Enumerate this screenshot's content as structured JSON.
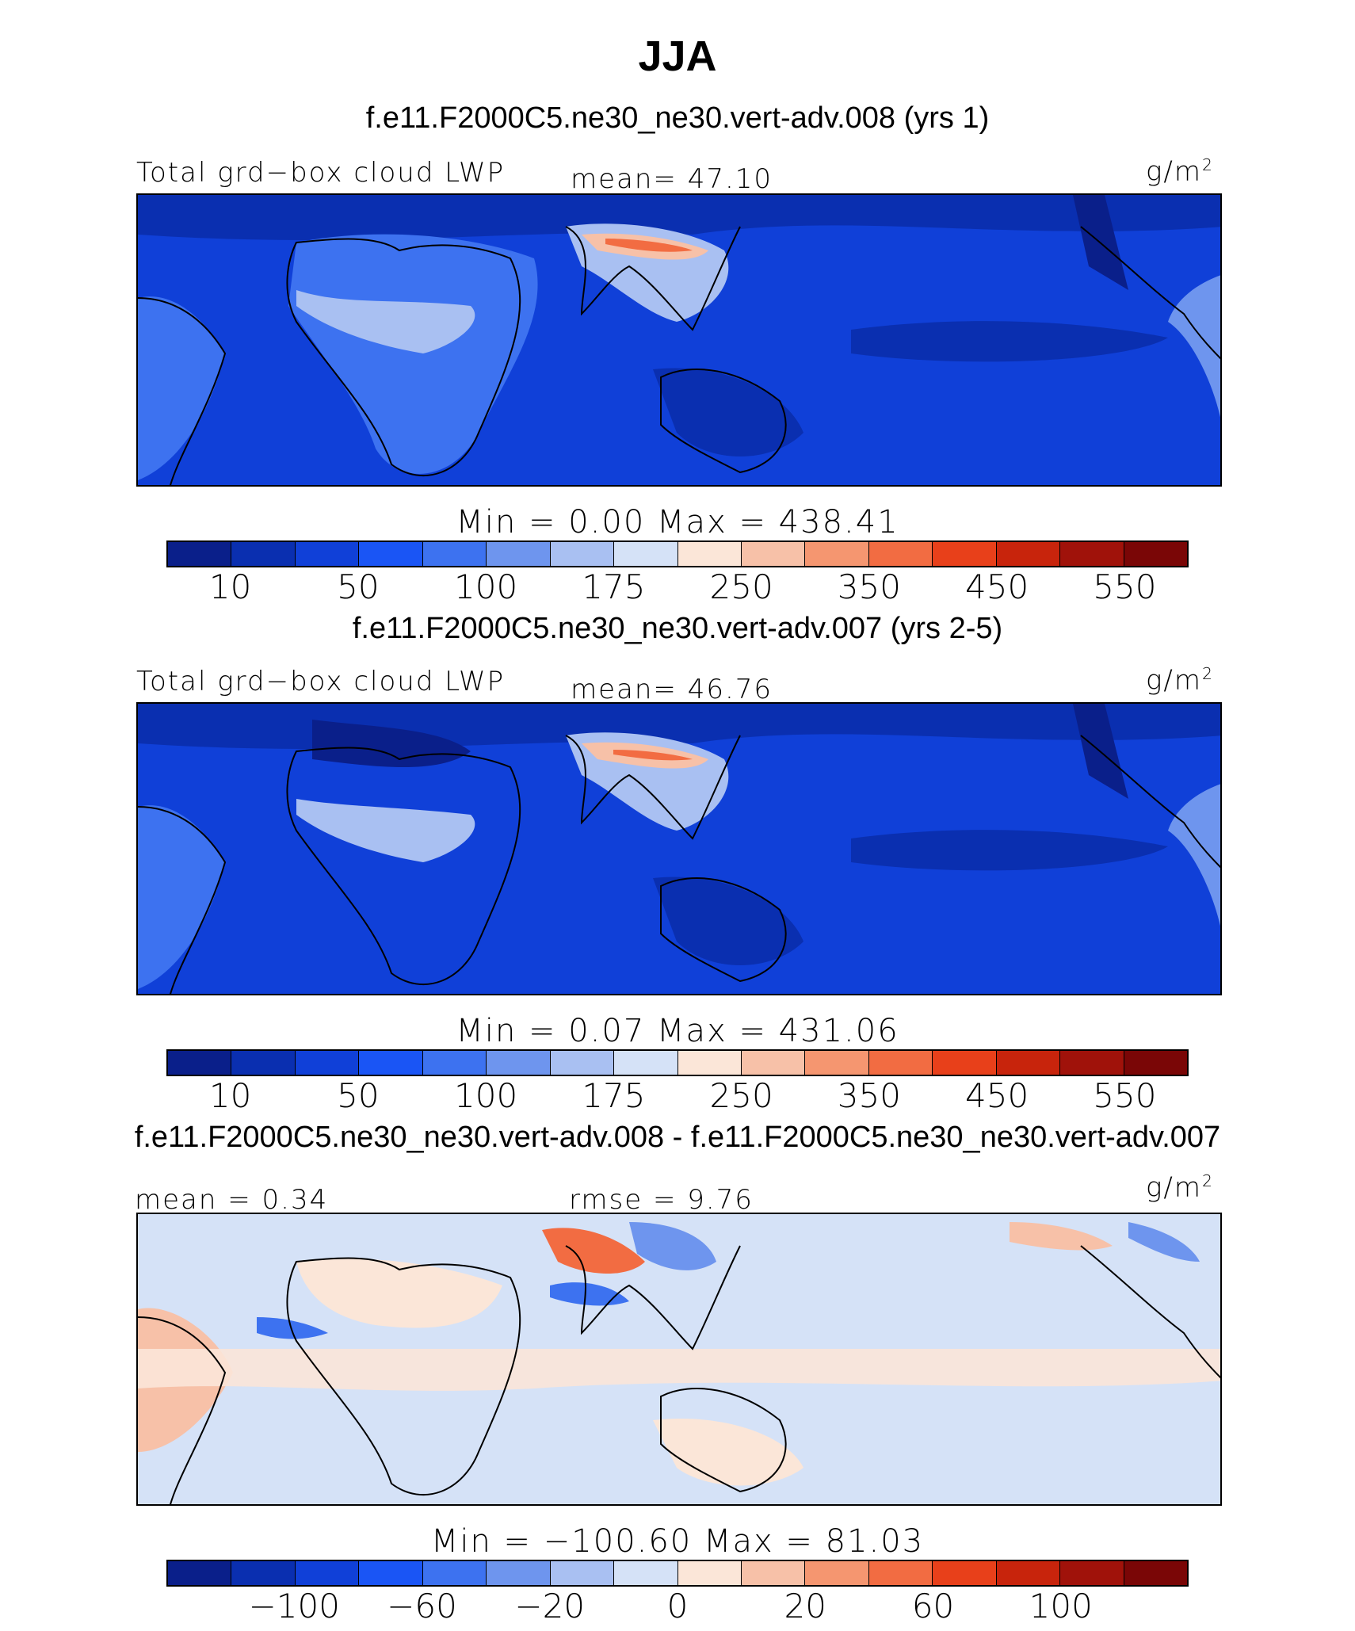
{
  "title": "JJA",
  "palette": [
    "#0a1f8a",
    "#0a2fb0",
    "#1040d8",
    "#1a55f5",
    "#3d72f0",
    "#6e95ee",
    "#a9c0f2",
    "#d5e2f7",
    "#fbe6d8",
    "#f7c1a8",
    "#f59670",
    "#f26c42",
    "#e8401a",
    "#c8240c",
    "#a0120a",
    "#7a0606"
  ],
  "panels": [
    {
      "title": "f.e11.F2000C5.ne30_ne30.vert-adv.008 (yrs 1)",
      "left_label": "Total grd−box cloud LWP",
      "center_label": "mean=  47.10",
      "units_base": "g/m",
      "units_exp": "2",
      "minmax": "Min  =    0.00  Max  =  438.41",
      "ticks": [
        "10",
        "50",
        "100",
        "175",
        "250",
        "350",
        "450",
        "550"
      ]
    },
    {
      "title": "f.e11.F2000C5.ne30_ne30.vert-adv.007 (yrs 2-5)",
      "left_label": "Total grd−box cloud LWP",
      "center_label": "mean=  46.76",
      "units_base": "g/m",
      "units_exp": "2",
      "minmax": "Min  =    0.07  Max  =  431.06",
      "ticks": [
        "10",
        "50",
        "100",
        "175",
        "250",
        "350",
        "450",
        "550"
      ]
    },
    {
      "title": "f.e11.F2000C5.ne30_ne30.vert-adv.008 - f.e11.F2000C5.ne30_ne30.vert-adv.007",
      "left_label": "mean =   0.34",
      "center_label": "rmse =    9.76",
      "units_base": "g/m",
      "units_exp": "2",
      "minmax": "Min  =  −100.60  Max  =   81.03",
      "ticks": [
        "−100",
        "−60",
        "−20",
        "0",
        "20",
        "60",
        "100"
      ]
    }
  ]
}
